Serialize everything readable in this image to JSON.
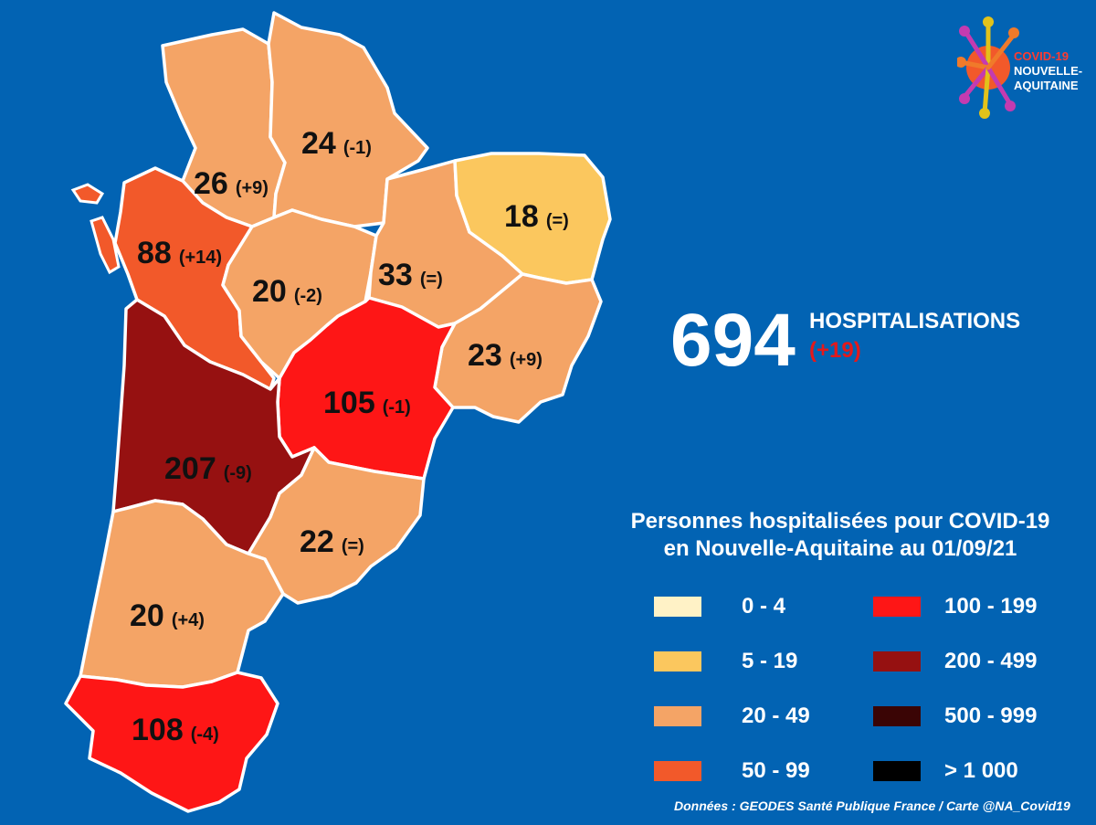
{
  "total": {
    "value": "694",
    "title": "HOSPITALISATIONS",
    "delta": "(+19)"
  },
  "legend": {
    "title_line1": "Personnes hospitalisées pour COVID-19",
    "title_line2": "en Nouvelle-Aquitaine au 01/09/21",
    "items": [
      {
        "label": "0 - 4",
        "color": "#FFF2C6"
      },
      {
        "label": "5 - 19",
        "color": "#FBC75E"
      },
      {
        "label": "20 - 49",
        "color": "#F4A466"
      },
      {
        "label": "50 - 99",
        "color": "#F2592A"
      },
      {
        "label": "100 - 199",
        "color": "#FE1616"
      },
      {
        "label": "200 - 499",
        "color": "#961111"
      },
      {
        "label": "500 - 999",
        "color": "#3A0505"
      },
      {
        "label": "> 1 000",
        "color": "#000000"
      }
    ]
  },
  "departments": [
    {
      "value": "24",
      "delta": "(-1)",
      "color": "#F4A466"
    },
    {
      "value": "26",
      "delta": "(+9)",
      "color": "#F4A466"
    },
    {
      "value": "18",
      "delta": "(=)",
      "color": "#FBC75E"
    },
    {
      "value": "88",
      "delta": "(+14)",
      "color": "#F2592A"
    },
    {
      "value": "20",
      "delta": "(-2)",
      "color": "#F4A466"
    },
    {
      "value": "33",
      "delta": "(=)",
      "color": "#F4A466"
    },
    {
      "value": "23",
      "delta": "(+9)",
      "color": "#F4A466"
    },
    {
      "value": "105",
      "delta": "(-1)",
      "color": "#FE1616"
    },
    {
      "value": "207",
      "delta": "(-9)",
      "color": "#961111"
    },
    {
      "value": "22",
      "delta": "(=)",
      "color": "#F4A466"
    },
    {
      "value": "20",
      "delta": "(+4)",
      "color": "#F4A466"
    },
    {
      "value": "108",
      "delta": "(-4)",
      "color": "#FE1616"
    }
  ],
  "logo": {
    "line1": "COVID-19",
    "line2": "NOUVELLE-",
    "line3": "AQUITAINE"
  },
  "source": "Données : GEODES Santé Publique France / Carte @NA_Covid19"
}
